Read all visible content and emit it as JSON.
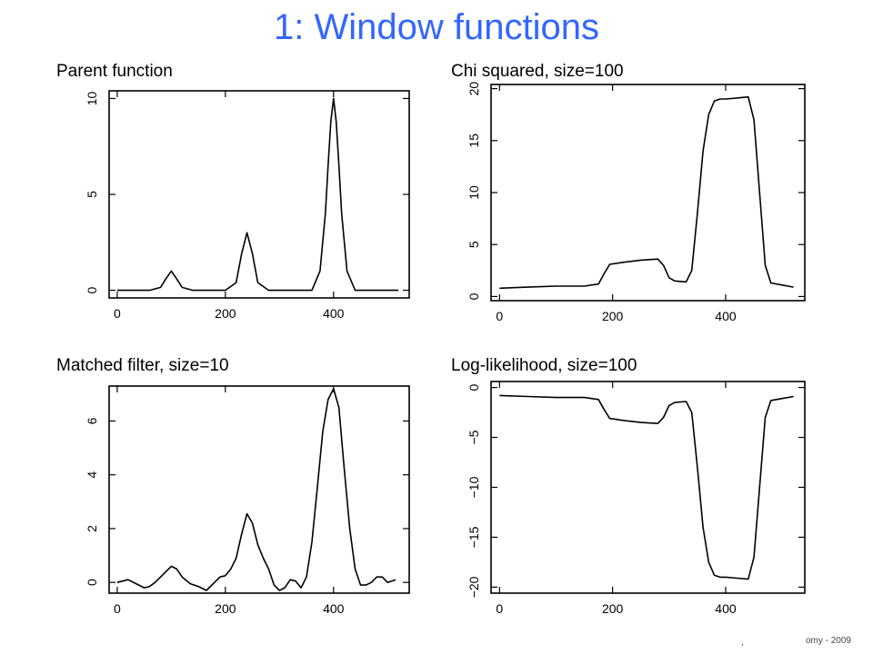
{
  "slide_title": "1: Window functions",
  "footer": "omy - 2009",
  "footer_mark": ",",
  "chart_data": [
    {
      "type": "line",
      "title": "Parent function",
      "xlabel": "",
      "ylabel": "",
      "xlim": [
        -15,
        540
      ],
      "ylim": [
        -0.4,
        10.4
      ],
      "x_ticks": [
        0,
        200,
        400
      ],
      "y_ticks": [
        0,
        5,
        10
      ],
      "y_tick_labels": [
        "0",
        "5",
        "10"
      ],
      "series": [
        {
          "x": [
            0,
            60,
            80,
            90,
            100,
            110,
            120,
            140,
            200,
            220,
            230,
            240,
            250,
            260,
            280,
            360,
            375,
            385,
            390,
            395,
            400,
            405,
            410,
            415,
            425,
            440,
            520
          ],
          "y": [
            0,
            0,
            0.15,
            0.6,
            1.0,
            0.6,
            0.15,
            0,
            0,
            0.4,
            1.9,
            3.0,
            1.9,
            0.4,
            0,
            0,
            1.0,
            4.0,
            6.5,
            8.8,
            10.0,
            8.8,
            6.5,
            4.0,
            1.0,
            0,
            0
          ]
        }
      ]
    },
    {
      "type": "line",
      "title": "Chi squared, size=100",
      "xlabel": "",
      "ylabel": "",
      "xlim": [
        -15,
        540
      ],
      "ylim": [
        -0.4,
        20.4
      ],
      "x_ticks": [
        0,
        200,
        400
      ],
      "y_ticks": [
        0,
        5,
        10,
        15,
        20
      ],
      "y_tick_labels": [
        "0",
        "5",
        "10",
        "15",
        "20"
      ],
      "series": [
        {
          "x": [
            0,
            50,
            100,
            150,
            175,
            185,
            195,
            220,
            250,
            280,
            290,
            300,
            310,
            330,
            340,
            350,
            360,
            370,
            380,
            390,
            400,
            420,
            440,
            450,
            460,
            470,
            480,
            500,
            520
          ],
          "y": [
            0.8,
            0.9,
            1.0,
            1.0,
            1.2,
            2.2,
            3.1,
            3.3,
            3.5,
            3.6,
            3.0,
            1.8,
            1.5,
            1.4,
            2.5,
            8.0,
            14.0,
            17.5,
            18.8,
            19.0,
            19.0,
            19.1,
            19.2,
            17.0,
            10.0,
            3.0,
            1.3,
            1.1,
            0.9
          ]
        }
      ]
    },
    {
      "type": "line",
      "title": "Matched filter, size=10",
      "xlabel": "",
      "ylabel": "",
      "xlim": [
        -15,
        540
      ],
      "ylim": [
        -0.4,
        7.3
      ],
      "x_ticks": [
        0,
        200,
        400
      ],
      "y_ticks": [
        0,
        2,
        4,
        6
      ],
      "y_tick_labels": [
        "0",
        "2",
        "4",
        "6"
      ],
      "series": [
        {
          "x": [
            0,
            20,
            35,
            50,
            60,
            70,
            85,
            100,
            110,
            120,
            135,
            150,
            165,
            180,
            190,
            200,
            210,
            220,
            230,
            240,
            250,
            260,
            270,
            280,
            290,
            300,
            310,
            320,
            330,
            340,
            350,
            360,
            370,
            380,
            390,
            400,
            410,
            420,
            430,
            440,
            450,
            460,
            470,
            480,
            490,
            500,
            515
          ],
          "y": [
            0,
            0.1,
            -0.05,
            -0.2,
            -0.15,
            0,
            0.3,
            0.6,
            0.5,
            0.2,
            -0.05,
            -0.15,
            -0.3,
            0,
            0.2,
            0.25,
            0.5,
            0.9,
            1.8,
            2.55,
            2.2,
            1.4,
            0.9,
            0.5,
            -0.1,
            -0.3,
            -0.2,
            0.1,
            0.05,
            -0.2,
            0.2,
            1.5,
            3.5,
            5.6,
            6.8,
            7.2,
            6.5,
            4.2,
            2.0,
            0.5,
            -0.1,
            -0.1,
            0.0,
            0.2,
            0.2,
            0.0,
            0.1
          ]
        }
      ]
    },
    {
      "type": "line",
      "title": "Log-likelihood, size=100",
      "xlabel": "",
      "ylabel": "",
      "xlim": [
        -15,
        540
      ],
      "ylim": [
        -20.6,
        0.6
      ],
      "x_ticks": [
        0,
        200,
        400
      ],
      "y_ticks": [
        0,
        -5,
        -10,
        -15,
        -20
      ],
      "y_tick_labels": [
        "0",
        "−5",
        "−10",
        "−15",
        "−20"
      ],
      "series": [
        {
          "x": [
            0,
            50,
            100,
            150,
            175,
            185,
            195,
            220,
            250,
            280,
            290,
            300,
            310,
            330,
            340,
            350,
            360,
            370,
            380,
            390,
            400,
            420,
            440,
            450,
            460,
            470,
            480,
            500,
            520
          ],
          "y": [
            -0.8,
            -0.9,
            -1.0,
            -1.0,
            -1.2,
            -2.2,
            -3.1,
            -3.3,
            -3.5,
            -3.6,
            -3.0,
            -1.8,
            -1.5,
            -1.4,
            -2.5,
            -8.0,
            -14.0,
            -17.5,
            -18.8,
            -19.0,
            -19.0,
            -19.1,
            -19.2,
            -17.0,
            -10.0,
            -3.0,
            -1.3,
            -1.1,
            -0.9
          ]
        }
      ]
    }
  ]
}
